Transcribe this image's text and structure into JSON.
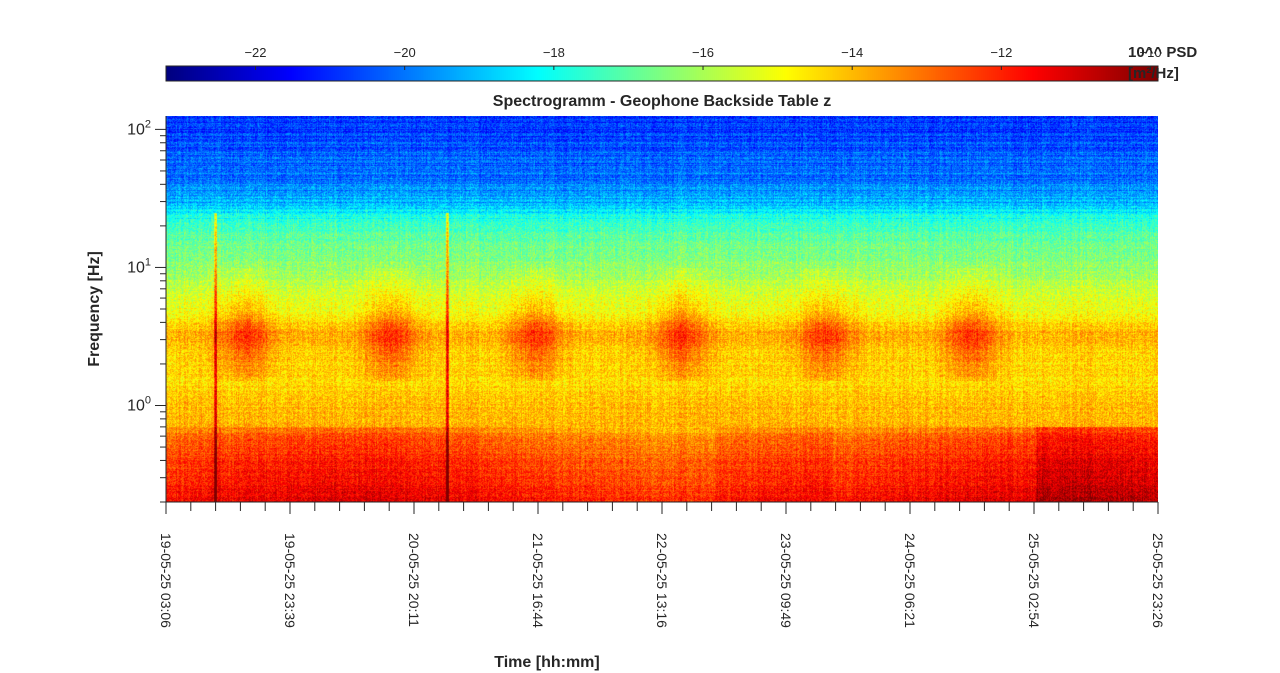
{
  "chart_data": {
    "type": "heatmap",
    "title": "Spectrogramm - Geophone Backside Table z",
    "xlabel": "Time [hh:mm]",
    "ylabel": "Frequency [Hz]",
    "x_tick_labels": [
      "19-05-25 03:06",
      "19-05-25 23:39",
      "20-05-25 20:11",
      "21-05-25 16:44",
      "22-05-25 13:16",
      "23-05-25 09:49",
      "24-05-25 06:21",
      "25-05-25 02:54",
      "25-05-25 23:26"
    ],
    "y_scale": "log",
    "y_tick_exponents": [
      0,
      1,
      2
    ],
    "y_tick_base": "10",
    "ylim": [
      0.2,
      125
    ],
    "colorbar": {
      "colormap": "jet",
      "ticks": [
        -22,
        -20,
        -18,
        -16,
        -14,
        -12,
        -10
      ],
      "range": [
        -23.2,
        -9.9
      ],
      "label_line1": "10^^ PSD",
      "label_line2": "[m²/Hz]"
    },
    "frequency_profile": [
      {
        "f": 0.2,
        "v": -11.6
      },
      {
        "f": 0.28,
        "v": -12.0
      },
      {
        "f": 0.4,
        "v": -12.4
      },
      {
        "f": 0.55,
        "v": -12.9
      },
      {
        "f": 0.68,
        "v": -13.5
      },
      {
        "f": 0.75,
        "v": -14.0
      },
      {
        "f": 1.0,
        "v": -14.0
      },
      {
        "f": 1.5,
        "v": -14.4
      },
      {
        "f": 2.5,
        "v": -14.3
      },
      {
        "f": 3.3,
        "v": -13.8
      },
      {
        "f": 4.5,
        "v": -14.9
      },
      {
        "f": 7,
        "v": -15.6
      },
      {
        "f": 10,
        "v": -16.3
      },
      {
        "f": 15,
        "v": -16.8
      },
      {
        "f": 22,
        "v": -17.6
      },
      {
        "f": 28,
        "v": -19.0
      },
      {
        "f": 40,
        "v": -19.8
      },
      {
        "f": 70,
        "v": -20.4
      },
      {
        "f": 125,
        "v": -21.0
      }
    ],
    "activity_windows_days": [
      0.55,
      1.55,
      2.55,
      3.55,
      4.55,
      5.55
    ],
    "transient_events_days": [
      0.34,
      1.94
    ]
  }
}
